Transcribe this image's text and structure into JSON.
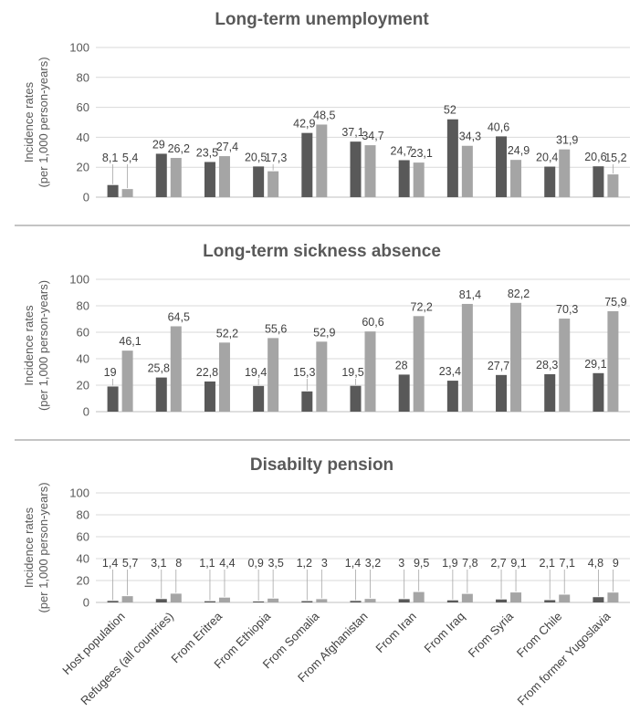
{
  "colors": {
    "series_a": "#595959",
    "series_b": "#a5a5a5"
  },
  "chart_data": [
    {
      "type": "bar",
      "title": "Long-term unemployment",
      "ylabel_line1": "Incidence rates",
      "ylabel_line2": "(per 1,000 person-years)",
      "ylim": [
        0,
        100
      ],
      "yticks": [
        0,
        20,
        40,
        60,
        80,
        100
      ],
      "grid": true,
      "categories": [
        "Host population",
        "Refugees (all countries)",
        "From Eritrea",
        "From Ethiopia",
        "From Somalia",
        "From Afghanistan",
        "From Iran",
        "From Iraq",
        "From Syria",
        "From Chile",
        "From former Yugoslavia"
      ],
      "series": [
        {
          "values": [
            8.1,
            29,
            23.5,
            20.5,
            42.9,
            37.1,
            24.7,
            52,
            40.6,
            20.4,
            20.6
          ],
          "labels": [
            "8,1",
            "29",
            "23,5",
            "20,5",
            "42,9",
            "37,1",
            "24,7",
            "52",
            "40,6",
            "20,4",
            "20,6"
          ]
        },
        {
          "values": [
            5.4,
            26.2,
            27.4,
            17.3,
            48.5,
            34.7,
            23.1,
            34.3,
            24.9,
            31.9,
            15.2
          ],
          "labels": [
            "5,4",
            "26,2",
            "27,4",
            "17,3",
            "48,5",
            "34,7",
            "23,1",
            "34,3",
            "24,9",
            "31,9",
            "15,2"
          ]
        }
      ]
    },
    {
      "type": "bar",
      "title": "Long-term sickness absence",
      "ylabel_line1": "Incidence rates",
      "ylabel_line2": "(per 1,000 person-years)",
      "ylim": [
        0,
        100
      ],
      "yticks": [
        0,
        20,
        40,
        60,
        80,
        100
      ],
      "grid": true,
      "categories": [
        "Host population",
        "Refugees (all countries)",
        "From Eritrea",
        "From Ethiopia",
        "From Somalia",
        "From Afghanistan",
        "From Iran",
        "From Iraq",
        "From Syria",
        "From Chile",
        "From former Yugoslavia"
      ],
      "series": [
        {
          "values": [
            19,
            25.8,
            22.8,
            19.4,
            15.3,
            19.5,
            28,
            23.4,
            27.7,
            28.3,
            29.1
          ],
          "labels": [
            "19",
            "25,8",
            "22,8",
            "19,4",
            "15,3",
            "19,5",
            "28",
            "23,4",
            "27,7",
            "28,3",
            "29,1"
          ]
        },
        {
          "values": [
            46.1,
            64.5,
            52.2,
            55.6,
            52.9,
            60.6,
            72.2,
            81.4,
            82.2,
            70.3,
            75.9
          ],
          "labels": [
            "46,1",
            "64,5",
            "52,2",
            "55,6",
            "52,9",
            "60,6",
            "72,2",
            "81,4",
            "82,2",
            "70,3",
            "75,9"
          ]
        }
      ]
    },
    {
      "type": "bar",
      "title": "Disabilty pension",
      "ylabel_line1": "Incidence rates",
      "ylabel_line2": "(per 1,000 person-years)",
      "ylim": [
        0,
        100
      ],
      "yticks": [
        0,
        20,
        40,
        60,
        80,
        100
      ],
      "grid": true,
      "categories": [
        "Host population",
        "Refugees (all countries)",
        "From Eritrea",
        "From Ethiopia",
        "From Somalia",
        "From Afghanistan",
        "From Iran",
        "From Iraq",
        "From Syria",
        "From Chile",
        "From former Yugoslavia"
      ],
      "series": [
        {
          "values": [
            1.4,
            3.1,
            1.1,
            0.9,
            1.2,
            1.4,
            3,
            1.9,
            2.7,
            2.1,
            4.8
          ],
          "labels": [
            "1,4",
            "3,1",
            "1,1",
            "0,9",
            "1,2",
            "1,4",
            "3",
            "1,9",
            "2,7",
            "2,1",
            "4,8"
          ]
        },
        {
          "values": [
            5.7,
            8,
            4.4,
            3.5,
            3,
            3.2,
            9.5,
            7.8,
            9.1,
            7.1,
            9
          ],
          "labels": [
            "5,7",
            "8",
            "4,4",
            "3,5",
            "3",
            "3,2",
            "9,5",
            "7,8",
            "9,1",
            "7,1",
            "9"
          ]
        }
      ]
    }
  ]
}
